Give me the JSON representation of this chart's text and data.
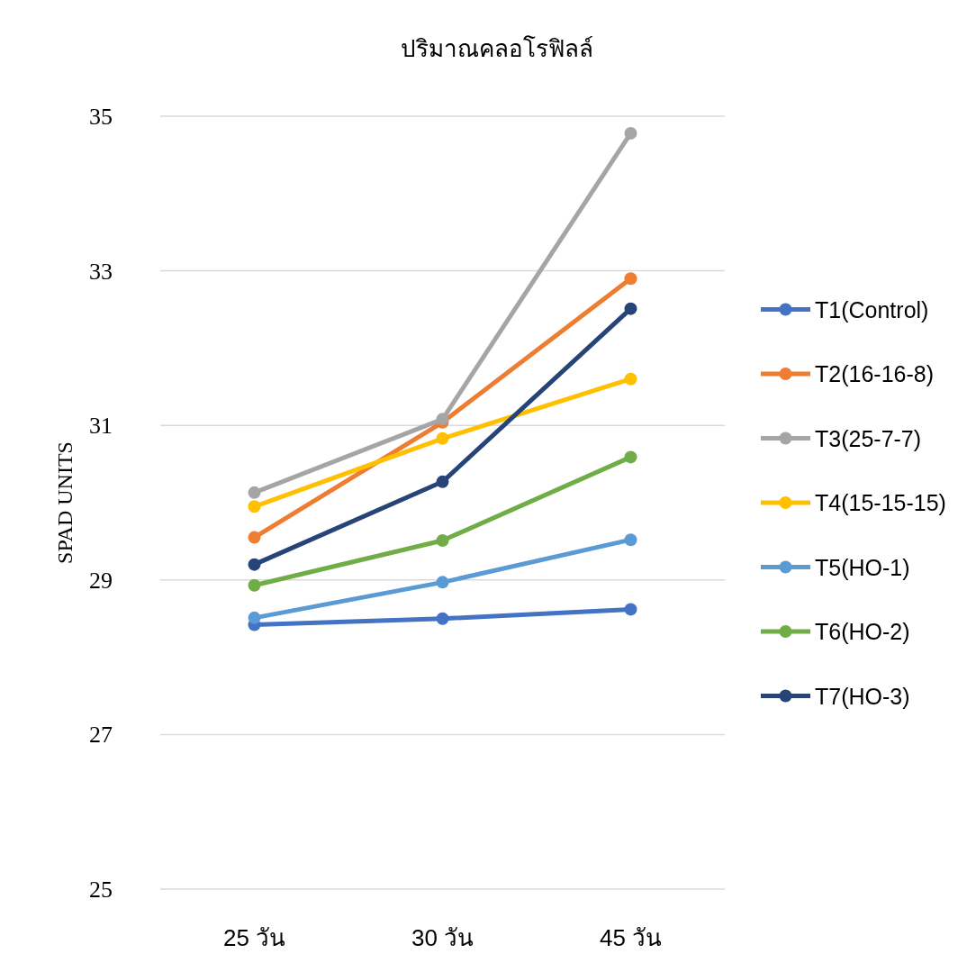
{
  "chart_data": {
    "type": "line",
    "title": "ปริมาณคลอโรฟิลล์",
    "ylabel": "SPAD UNITS",
    "categories": [
      "25 วัน",
      "30 วัน",
      "45 วัน"
    ],
    "series": [
      {
        "name": "T1(Control)",
        "color": "#4472c4",
        "values": [
          28.42,
          28.5,
          28.62
        ]
      },
      {
        "name": "T2(16-16-8)",
        "color": "#ed7d31",
        "values": [
          29.55,
          31.04,
          32.9
        ]
      },
      {
        "name": "T3(25-7-7)",
        "color": "#a5a5a5",
        "values": [
          30.13,
          31.08,
          34.78
        ]
      },
      {
        "name": "T4(15-15-15)",
        "color": "#ffc000",
        "values": [
          29.95,
          30.83,
          31.6
        ]
      },
      {
        "name": "T5(HO-1)",
        "color": "#5b9bd5",
        "values": [
          28.51,
          28.97,
          29.52
        ]
      },
      {
        "name": "T6(HO-2)",
        "color": "#70ad47",
        "values": [
          28.93,
          29.51,
          30.59
        ]
      },
      {
        "name": "T7(HO-3)",
        "color": "#264478",
        "values": [
          29.2,
          30.27,
          32.51
        ]
      }
    ],
    "ylim": [
      25,
      35
    ],
    "yticks": [
      25,
      27,
      29,
      31,
      33,
      35
    ],
    "grid": "y",
    "legend": "right",
    "marker": "circle",
    "line_style": "solid"
  }
}
